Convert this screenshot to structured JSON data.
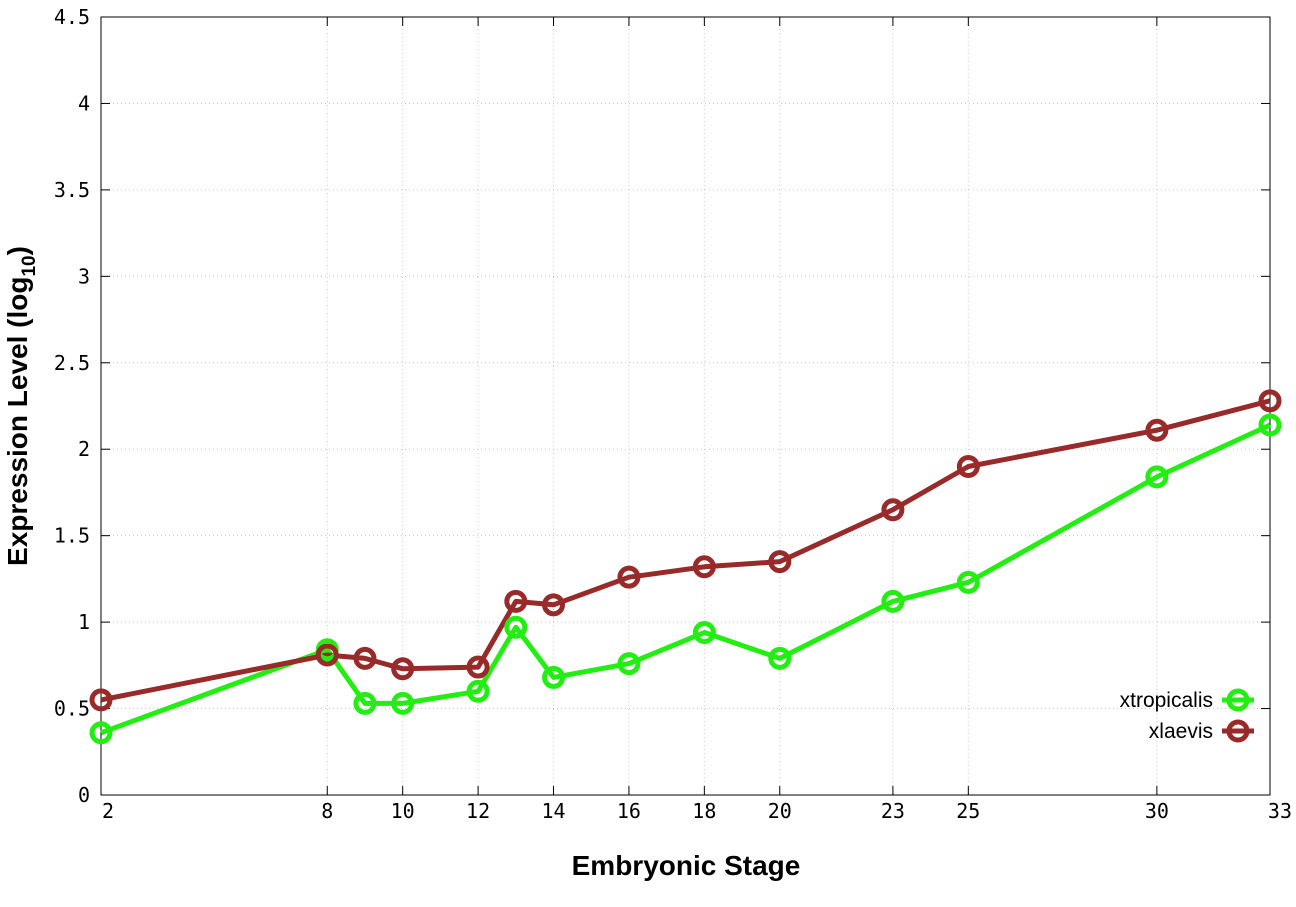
{
  "chart_data": {
    "type": "line",
    "x": [
      2,
      8,
      9,
      10,
      12,
      13,
      14,
      16,
      18,
      20,
      23,
      25,
      30,
      33
    ],
    "x_ticks": [
      2,
      8,
      10,
      12,
      14,
      16,
      18,
      20,
      23,
      25,
      30,
      33
    ],
    "xlim": [
      2,
      33
    ],
    "ylim": [
      0,
      4.5
    ],
    "y_ticks": [
      0,
      0.5,
      1,
      1.5,
      2,
      2.5,
      3,
      3.5,
      4,
      4.5
    ],
    "y_tick_labels": [
      "0",
      "0.5",
      "1",
      "1.5",
      "2",
      "2.5",
      "3",
      "3.5",
      "4",
      "4.5"
    ],
    "xlabel": "Embryonic Stage",
    "ylabel_main": "Expression Level (log",
    "ylabel_sub": "10",
    "ylabel_end": ")",
    "grid": true,
    "legend_position": "bottom-right",
    "series": [
      {
        "name": "xtropicalis",
        "color": "#22ee11",
        "values": [
          0.36,
          0.84,
          0.53,
          0.53,
          0.6,
          0.97,
          0.68,
          0.76,
          0.94,
          0.79,
          1.12,
          1.23,
          1.84,
          2.14
        ]
      },
      {
        "name": "xlaevis",
        "color": "#992a2a",
        "values": [
          0.55,
          0.81,
          0.79,
          0.73,
          0.74,
          1.12,
          1.1,
          1.26,
          1.32,
          1.35,
          1.65,
          1.9,
          2.11,
          2.28
        ]
      }
    ]
  }
}
